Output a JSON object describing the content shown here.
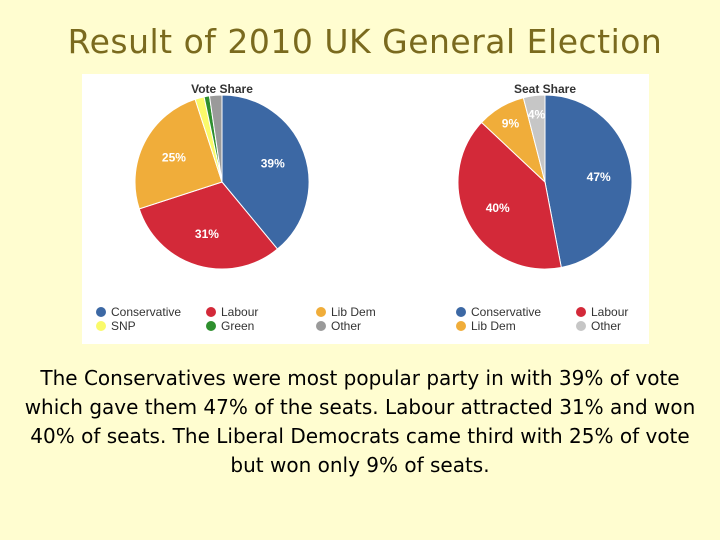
{
  "title": "Result of 2010 UK General Election",
  "caption": "The Conservatives were most popular party in with 39% of vote which gave them 47% of the seats. Labour attracted 31% and won 40% of seats. The Liberal Democrats came third with 25% of vote but won only 9% of seats.",
  "chart_data": [
    {
      "type": "pie",
      "title": "Vote Share",
      "labels": [
        "Conservative",
        "Labour",
        "Lib Dem",
        "SNP",
        "Green",
        "Other"
      ],
      "values": [
        39,
        31,
        25,
        1.7,
        1,
        2.3
      ],
      "data_labels": [
        "39%",
        "31%",
        "25%",
        "",
        "",
        ""
      ],
      "colors": [
        "#3c68a4",
        "#d32939",
        "#f0ad3a",
        "#fafa6a",
        "#2e8f2e",
        "#9a9a9a"
      ],
      "legend": {
        "placement": "bottom",
        "columns": 3,
        "labels": [
          "Conservative",
          "Labour",
          "Lib Dem",
          "SNP",
          "Green",
          "Other"
        ]
      }
    },
    {
      "type": "pie",
      "title": "Seat Share",
      "labels": [
        "Conservative",
        "Labour",
        "Lib Dem",
        "Other"
      ],
      "values": [
        47,
        40,
        9,
        4
      ],
      "data_labels": [
        "47%",
        "40%",
        "9%",
        "4%"
      ],
      "colors": [
        "#3c68a4",
        "#d32939",
        "#f0ad3a",
        "#c6c6c6"
      ],
      "legend": {
        "placement": "bottom",
        "columns": 2,
        "labels": [
          "Conservative",
          "Labour",
          "Lib Dem",
          "Other"
        ]
      }
    }
  ]
}
